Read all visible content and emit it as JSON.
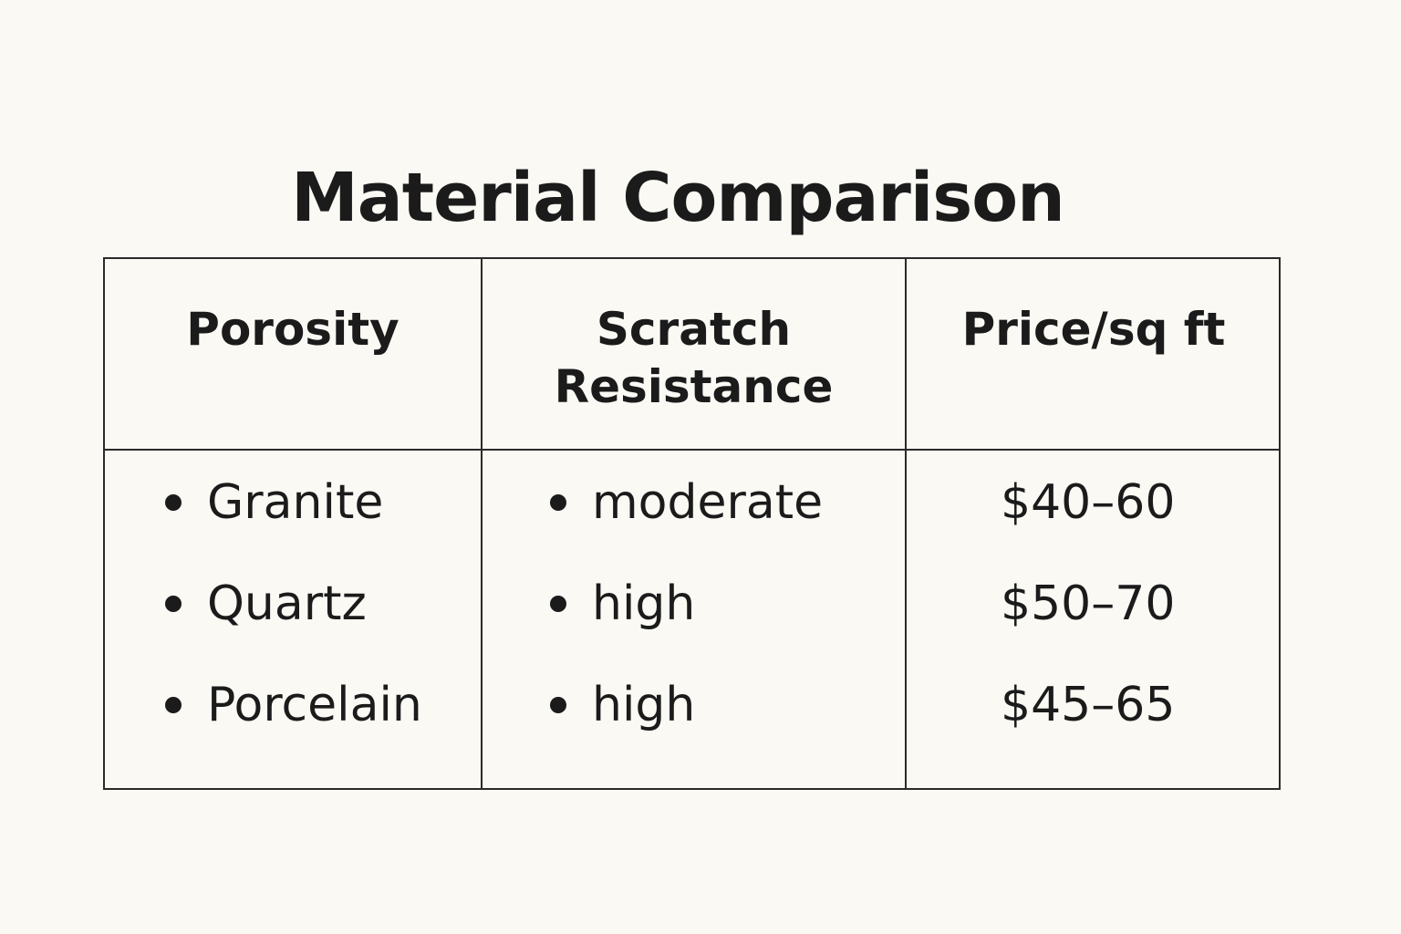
{
  "title": "Material Comparison",
  "chart_data": {
    "type": "table",
    "columns": [
      "Porosity",
      "Scratch Resistance",
      "Price/sq ft"
    ],
    "header_lines": {
      "col1": [
        "Porosity"
      ],
      "col2": [
        "Scratch",
        "Resistance"
      ],
      "col3": [
        "Price/sq ft"
      ]
    },
    "rows": [
      {
        "material": "Granite",
        "scratch_resistance": "moderate",
        "price": "$40–60"
      },
      {
        "material": "Quartz",
        "scratch_resistance": "high",
        "price": "$50–70"
      },
      {
        "material": "Porcelain",
        "scratch_resistance": "high",
        "price": "$45–65"
      }
    ]
  },
  "colors": {
    "background": "#fbf9f4",
    "text": "#1b1b1b",
    "border": "#2a2a2a"
  }
}
